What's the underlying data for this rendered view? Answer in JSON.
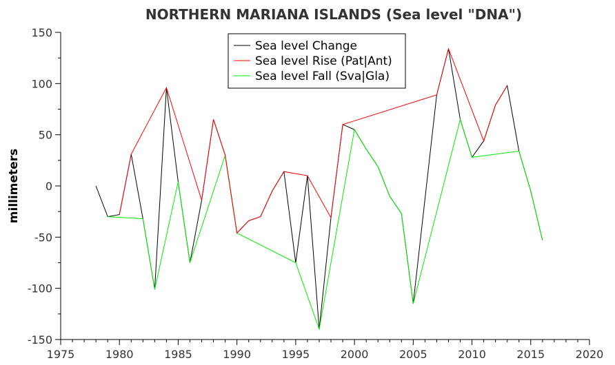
{
  "chart_data": {
    "type": "line",
    "title": "NORTHERN MARIANA ISLANDS (Sea level \"DNA\")",
    "xlabel": "",
    "ylabel": "millimeters",
    "xlim": [
      1975,
      2020
    ],
    "ylim": [
      -150,
      150
    ],
    "xticks": [
      1975,
      1980,
      1985,
      1990,
      1995,
      2000,
      2005,
      2010,
      2015,
      2020
    ],
    "yticks": [
      150,
      100,
      50,
      0,
      -50,
      -100,
      -150
    ],
    "legend_position": "top-center",
    "series": [
      {
        "name": "Sea level Change",
        "color": "#000000",
        "points": [
          [
            1978,
            0
          ],
          [
            1979,
            -30
          ],
          [
            1980,
            -28
          ],
          [
            1981,
            31
          ],
          [
            1982,
            -32
          ],
          [
            1983,
            -101
          ],
          [
            1984,
            96
          ],
          [
            1985,
            4
          ],
          [
            1986,
            -75
          ],
          [
            1987,
            -14
          ],
          [
            1988,
            65
          ],
          [
            1989,
            30
          ],
          [
            1990,
            -46
          ],
          [
            1991,
            -34
          ],
          [
            1992,
            -30
          ],
          [
            1993,
            -5
          ],
          [
            1994,
            14
          ],
          [
            1995,
            -75
          ],
          [
            1996,
            10
          ],
          [
            1997,
            -140
          ],
          [
            1998,
            -31
          ],
          [
            1999,
            60
          ],
          [
            2000,
            55
          ],
          [
            2001,
            36
          ],
          [
            2002,
            19
          ],
          [
            2003,
            -10
          ],
          [
            2004,
            -27
          ],
          [
            2005,
            -115
          ],
          [
            2007,
            89
          ],
          [
            2008,
            134
          ],
          [
            2009,
            65
          ],
          [
            2010,
            28
          ],
          [
            2011,
            44
          ],
          [
            2012,
            79
          ],
          [
            2013,
            98
          ],
          [
            2014,
            34
          ],
          [
            2015,
            -5
          ],
          [
            2016,
            -53
          ]
        ]
      },
      {
        "name": "Sea level Rise (Pat|Ant)",
        "color": "#ff0000",
        "points": [
          [
            1980,
            -28
          ],
          [
            1981,
            31
          ],
          [
            1984,
            96
          ],
          [
            1987,
            -14
          ],
          [
            1988,
            65
          ],
          [
            1989,
            30
          ],
          [
            1990,
            -46
          ],
          [
            1991,
            -34
          ],
          [
            1992,
            -30
          ],
          [
            1993,
            -5
          ],
          [
            1994,
            14
          ],
          [
            1996,
            10
          ],
          [
            1998,
            -31
          ],
          [
            1999,
            60
          ],
          [
            2007,
            89
          ],
          [
            2008,
            134
          ],
          [
            2011,
            44
          ],
          [
            2012,
            79
          ],
          [
            2013,
            98
          ]
        ]
      },
      {
        "name": "Sea level Fall (Sva|Gla)",
        "color": "#00ee00",
        "points": [
          [
            1979,
            -30
          ],
          [
            1982,
            -32
          ],
          [
            1983,
            -101
          ],
          [
            1985,
            4
          ],
          [
            1986,
            -75
          ],
          [
            1989,
            30
          ],
          [
            1990,
            -46
          ],
          [
            1995,
            -75
          ],
          [
            1997,
            -140
          ],
          [
            2000,
            55
          ],
          [
            2001,
            36
          ],
          [
            2002,
            19
          ],
          [
            2003,
            -10
          ],
          [
            2004,
            -27
          ],
          [
            2005,
            -115
          ],
          [
            2009,
            65
          ],
          [
            2010,
            28
          ],
          [
            2014,
            34
          ],
          [
            2015,
            -5
          ],
          [
            2016,
            -53
          ]
        ]
      }
    ]
  }
}
